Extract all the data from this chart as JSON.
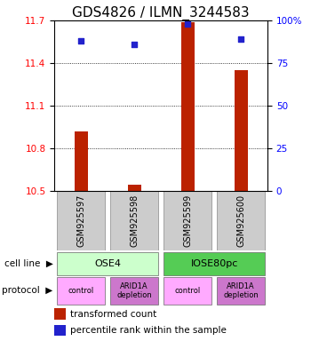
{
  "title": "GDS4826 / ILMN_3244583",
  "samples": [
    "GSM925597",
    "GSM925598",
    "GSM925599",
    "GSM925600"
  ],
  "bar_values": [
    10.92,
    10.545,
    11.69,
    11.35
  ],
  "dot_values": [
    88,
    86,
    98,
    89
  ],
  "ylim_left": [
    10.5,
    11.7
  ],
  "ylim_right": [
    0,
    100
  ],
  "yticks_left": [
    10.5,
    10.8,
    11.1,
    11.4,
    11.7
  ],
  "yticks_right": [
    0,
    25,
    50,
    75,
    100
  ],
  "bar_color": "#bb2200",
  "dot_color": "#2222cc",
  "bar_base": 10.5,
  "cell_line_labels": [
    "OSE4",
    "IOSE80pc"
  ],
  "cell_line_spans": [
    [
      0,
      2
    ],
    [
      2,
      4
    ]
  ],
  "cell_line_colors": [
    "#ccffcc",
    "#55cc55"
  ],
  "protocol_labels": [
    "control",
    "ARID1A\ndepletion",
    "control",
    "ARID1A\ndepletion"
  ],
  "protocol_colors": [
    "#ffaaff",
    "#cc77cc",
    "#ffaaff",
    "#cc77cc"
  ],
  "legend_bar_label": "transformed count",
  "legend_dot_label": "percentile rank within the sample",
  "title_fontsize": 11,
  "tick_fontsize": 7.5,
  "sample_fontsize": 7,
  "label_fontsize": 8
}
